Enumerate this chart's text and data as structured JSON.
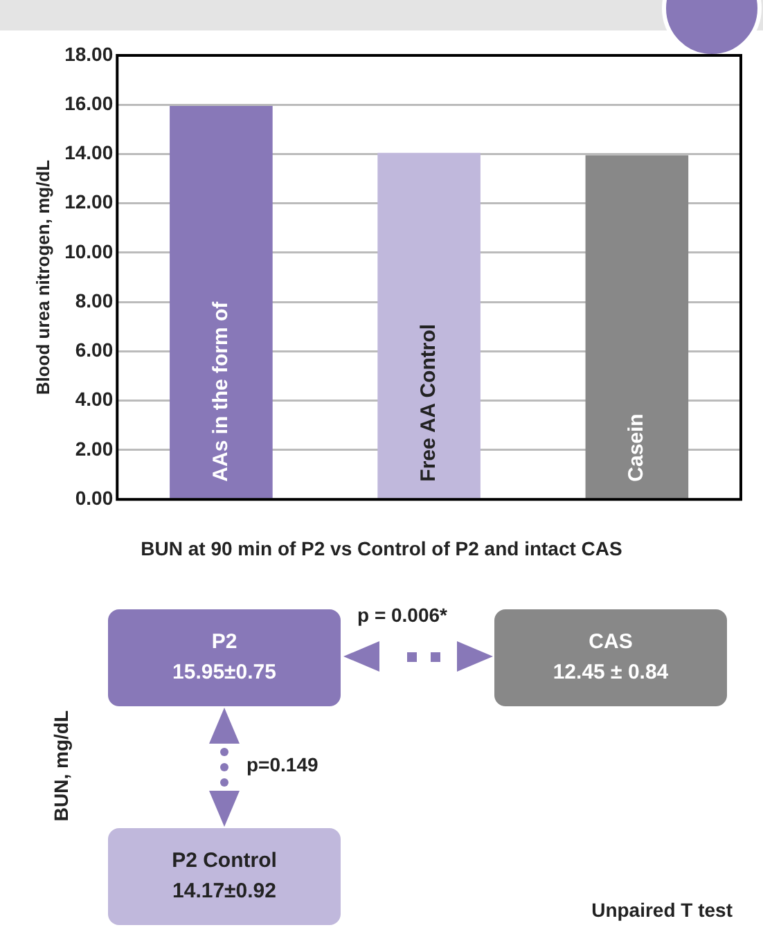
{
  "chart_data": {
    "type": "bar",
    "ylabel": "Blood urea nitrogen, mg/dL",
    "categories": [
      "AAs in the form of",
      "Free AA Control",
      "Casein"
    ],
    "values": [
      15.95,
      14.05,
      13.95
    ],
    "colors": [
      "#8878b8",
      "#c0b8dc",
      "#888888"
    ],
    "ylim": [
      0,
      18
    ],
    "yticks": [
      {
        "value": 0,
        "label": "0.00"
      },
      {
        "value": 2,
        "label": "2.00"
      },
      {
        "value": 4,
        "label": "4.00"
      },
      {
        "value": 6,
        "label": "6.00"
      },
      {
        "value": 8,
        "label": "8.00"
      },
      {
        "value": 10,
        "label": "10.00"
      },
      {
        "value": 12,
        "label": "12.00"
      },
      {
        "value": 14,
        "label": "14.00"
      },
      {
        "value": 16,
        "label": "16.00"
      },
      {
        "value": 18,
        "label": "18.00"
      }
    ],
    "grid": "y",
    "annotations": [
      "BUN at 90 min of P2 vs Control of P2 and intact CAS",
      "BUN, mg/dL",
      "P2",
      "15.95±0.75",
      "CAS",
      "12.45 ± 0.84",
      "P2 Control",
      "14.17±0.92",
      "p = 0.006*",
      "p=0.149",
      "Unpaired T test"
    ]
  }
}
